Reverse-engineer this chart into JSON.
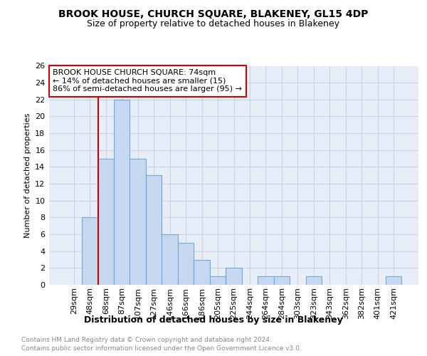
{
  "title": "BROOK HOUSE, CHURCH SQUARE, BLAKENEY, GL15 4DP",
  "subtitle": "Size of property relative to detached houses in Blakeney",
  "xlabel": "Distribution of detached houses by size in Blakeney",
  "ylabel": "Number of detached properties",
  "categories": [
    "29sqm",
    "48sqm",
    "68sqm",
    "87sqm",
    "107sqm",
    "127sqm",
    "146sqm",
    "166sqm",
    "186sqm",
    "205sqm",
    "225sqm",
    "244sqm",
    "264sqm",
    "284sqm",
    "303sqm",
    "323sqm",
    "343sqm",
    "362sqm",
    "382sqm",
    "401sqm",
    "421sqm"
  ],
  "values": [
    0,
    8,
    15,
    22,
    15,
    13,
    6,
    5,
    3,
    1,
    2,
    0,
    1,
    1,
    0,
    1,
    0,
    0,
    0,
    0,
    1
  ],
  "bar_color": "#c5d8f0",
  "bar_edge_color": "#6ea8d8",
  "red_line_x": 2.0,
  "annotation_line1": "BROOK HOUSE CHURCH SQUARE: 74sqm",
  "annotation_line2": "← 14% of detached houses are smaller (15)",
  "annotation_line3": "86% of semi-detached houses are larger (95) →",
  "annotation_box_facecolor": "#ffffff",
  "annotation_border_color": "#cc0000",
  "ylim": [
    0,
    26
  ],
  "yticks": [
    0,
    2,
    4,
    6,
    8,
    10,
    12,
    14,
    16,
    18,
    20,
    22,
    24,
    26
  ],
  "footer1": "Contains HM Land Registry data © Crown copyright and database right 2024.",
  "footer2": "Contains public sector information licensed under the Open Government Licence v3.0.",
  "grid_color": "#c8d4e4",
  "plot_bg_color": "#e8eef8",
  "title_fontsize": 10,
  "subtitle_fontsize": 9,
  "ylabel_fontsize": 8,
  "xlabel_fontsize": 9,
  "tick_fontsize": 8,
  "footer_fontsize": 6.5,
  "footer_color": "#888888"
}
